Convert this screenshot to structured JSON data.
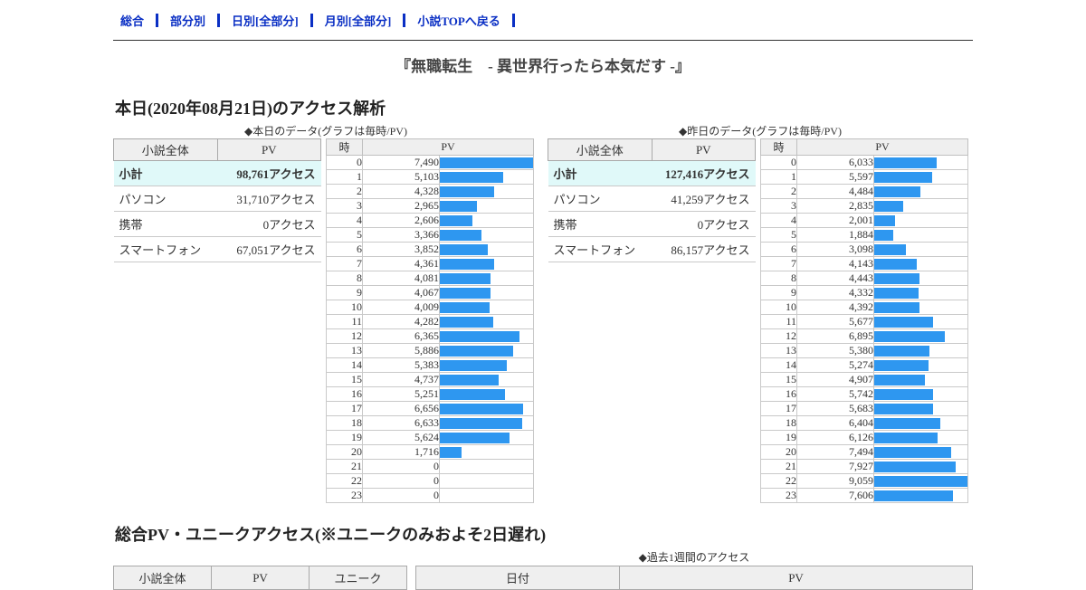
{
  "nav": {
    "items": [
      {
        "label": "総合"
      },
      {
        "label": "部分別"
      },
      {
        "label": "日別[全部分]"
      },
      {
        "label": "月別[全部分]"
      },
      {
        "label": "小説TOPへ戻る"
      }
    ]
  },
  "page_title": "『無職転生　- 異世界行ったら本気だす -』",
  "sections": {
    "today": {
      "heading": "本日(2020年08月21日)のアクセス解析",
      "panels": [
        {
          "caption": "◆本日のデータ(グラフは毎時/PV)",
          "summary": {
            "headers": [
              "小説全体",
              "PV"
            ],
            "rows": [
              {
                "label": "小計",
                "value": "98,761アクセス",
                "highlight": true
              },
              {
                "label": "パソコン",
                "value": "31,710アクセス",
                "highlight": false
              },
              {
                "label": "携帯",
                "value": "0アクセス",
                "highlight": false
              },
              {
                "label": "スマートフォン",
                "value": "67,051アクセス",
                "highlight": false
              }
            ]
          },
          "hourly": {
            "hour_header": "時",
            "pv_header": "PV",
            "hours": [
              0,
              1,
              2,
              3,
              4,
              5,
              6,
              7,
              8,
              9,
              10,
              11,
              12,
              13,
              14,
              15,
              16,
              17,
              18,
              19,
              20,
              21,
              22,
              23
            ],
            "values": [
              7490,
              5103,
              4328,
              2965,
              2606,
              3366,
              3852,
              4361,
              4081,
              4067,
              4009,
              4282,
              6365,
              5886,
              5383,
              4737,
              5251,
              6656,
              6633,
              5624,
              1716,
              0,
              0,
              0
            ]
          }
        },
        {
          "caption": "◆昨日のデータ(グラフは毎時/PV)",
          "summary": {
            "headers": [
              "小説全体",
              "PV"
            ],
            "rows": [
              {
                "label": "小計",
                "value": "127,416アクセス",
                "highlight": true
              },
              {
                "label": "パソコン",
                "value": "41,259アクセス",
                "highlight": false
              },
              {
                "label": "携帯",
                "value": "0アクセス",
                "highlight": false
              },
              {
                "label": "スマートフォン",
                "value": "86,157アクセス",
                "highlight": false
              }
            ]
          },
          "hourly": {
            "hour_header": "時",
            "pv_header": "PV",
            "hours": [
              0,
              1,
              2,
              3,
              4,
              5,
              6,
              7,
              8,
              9,
              10,
              11,
              12,
              13,
              14,
              15,
              16,
              17,
              18,
              19,
              20,
              21,
              22,
              23
            ],
            "values": [
              6033,
              5597,
              4484,
              2835,
              2001,
              1884,
              3098,
              4143,
              4443,
              4332,
              4392,
              5677,
              6895,
              5380,
              5274,
              4907,
              5742,
              5683,
              6404,
              6126,
              7494,
              7927,
              9059,
              7606
            ]
          }
        }
      ]
    },
    "unique": {
      "heading": "総合PV・ユニークアクセス(※ユニークのみおよそ2日遅れ)",
      "caption": "◆過去1週間のアクセス",
      "left_table": {
        "headers": [
          "小説全体",
          "PV",
          "ユニーク"
        ]
      },
      "right_table": {
        "headers": [
          "日付",
          "PV"
        ]
      }
    }
  },
  "chart_data": [
    {
      "type": "bar",
      "title": "本日のデータ(グラフは毎時/PV)",
      "xlabel": "時",
      "ylabel": "PV",
      "categories": [
        0,
        1,
        2,
        3,
        4,
        5,
        6,
        7,
        8,
        9,
        10,
        11,
        12,
        13,
        14,
        15,
        16,
        17,
        18,
        19,
        20,
        21,
        22,
        23
      ],
      "values": [
        7490,
        5103,
        4328,
        2965,
        2606,
        3366,
        3852,
        4361,
        4081,
        4067,
        4009,
        4282,
        6365,
        5886,
        5383,
        4737,
        5251,
        6656,
        6633,
        5624,
        1716,
        0,
        0,
        0
      ]
    },
    {
      "type": "bar",
      "title": "昨日のデータ(グラフは毎時/PV)",
      "xlabel": "時",
      "ylabel": "PV",
      "categories": [
        0,
        1,
        2,
        3,
        4,
        5,
        6,
        7,
        8,
        9,
        10,
        11,
        12,
        13,
        14,
        15,
        16,
        17,
        18,
        19,
        20,
        21,
        22,
        23
      ],
      "values": [
        6033,
        5597,
        4484,
        2835,
        2001,
        1884,
        3098,
        4143,
        4443,
        4332,
        4392,
        5677,
        6895,
        5380,
        5274,
        4907,
        5742,
        5683,
        6404,
        6126,
        7494,
        7927,
        9059,
        7606
      ]
    }
  ],
  "colors": {
    "bar": "#2e97f0",
    "highlight_row": "#e0f9f9",
    "link": "#0a2fc4",
    "header_bg": "#efefef"
  }
}
